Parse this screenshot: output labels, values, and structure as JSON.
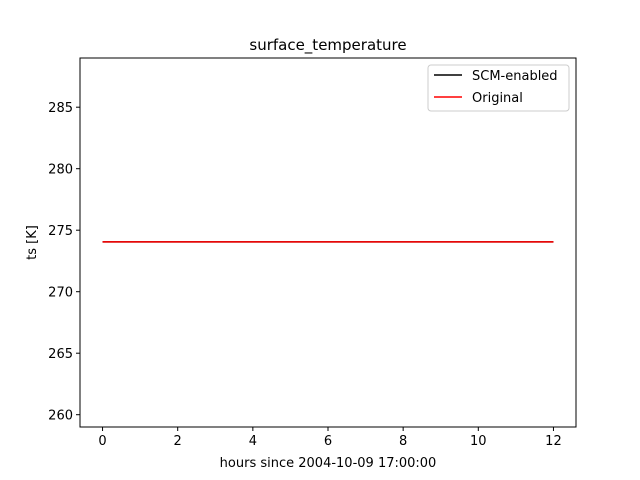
{
  "chart_data": {
    "type": "line",
    "title": "surface_temperature",
    "xlabel": "hours since 2004-10-09 17:00:00",
    "ylabel": "ts [K]",
    "xlim": [
      -0.6,
      12.6
    ],
    "ylim": [
      259,
      289
    ],
    "xticks": [
      0,
      2,
      4,
      6,
      8,
      10,
      12
    ],
    "yticks": [
      260,
      265,
      270,
      275,
      280,
      285
    ],
    "grid": false,
    "legend": "top-right",
    "series": [
      {
        "name": "SCM-enabled",
        "color": "#000000",
        "x": [
          0,
          12
        ],
        "y": [
          274.05,
          274.05
        ]
      },
      {
        "name": "Original",
        "color": "#ff0000",
        "x": [
          0,
          12
        ],
        "y": [
          274.05,
          274.05
        ]
      }
    ]
  }
}
